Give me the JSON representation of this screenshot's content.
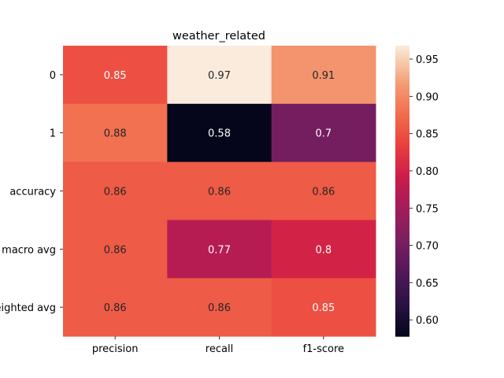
{
  "chart_data": {
    "type": "heatmap",
    "title": "weather_related",
    "columns": [
      "precision",
      "recall",
      "f1-score"
    ],
    "rows": [
      "0",
      "1",
      "accuracy",
      "macro avg",
      "weighted avg"
    ],
    "values": [
      [
        0.85,
        0.97,
        0.91
      ],
      [
        0.88,
        0.58,
        0.7
      ],
      [
        0.86,
        0.86,
        0.86
      ],
      [
        0.86,
        0.77,
        0.8
      ],
      [
        0.86,
        0.86,
        0.85
      ]
    ],
    "annotations": [
      [
        "0.85",
        "0.97",
        "0.91"
      ],
      [
        "0.88",
        "0.58",
        "0.7"
      ],
      [
        "0.86",
        "0.86",
        "0.86"
      ],
      [
        "0.86",
        "0.77",
        "0.8"
      ],
      [
        "0.86",
        "0.86",
        "0.85"
      ]
    ],
    "colorbar": {
      "min": 0.578,
      "max": 0.968,
      "ticks": [
        "0.60",
        "0.65",
        "0.70",
        "0.75",
        "0.80",
        "0.85",
        "0.90",
        "0.95"
      ],
      "colormap": "rocket"
    }
  }
}
